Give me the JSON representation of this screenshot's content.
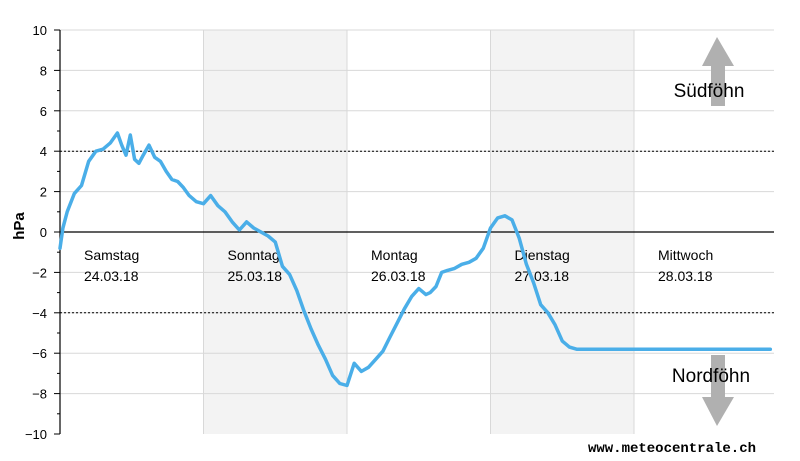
{
  "chart_data": {
    "type": "line",
    "ylabel": "hPa",
    "ylim": [
      -10,
      10
    ],
    "yticks": [
      10,
      8,
      6,
      4,
      2,
      0,
      -2,
      -4,
      -6,
      -8,
      -10
    ],
    "threshold_lines": [
      4,
      -4
    ],
    "xlim": [
      0,
      5
    ],
    "x_unit": "days",
    "days": [
      {
        "name": "Samstag",
        "date": "24.03.18",
        "shaded": false
      },
      {
        "name": "Sonntag",
        "date": "25.03.18",
        "shaded": true
      },
      {
        "name": "Montag",
        "date": "26.03.18",
        "shaded": false
      },
      {
        "name": "Dienstag",
        "date": "27.03.18",
        "shaded": true
      },
      {
        "name": "Mittwoch",
        "date": "28.03.18",
        "shaded": false
      }
    ],
    "annotations": {
      "south": "Südföhn",
      "north": "Nordföhn"
    },
    "line_color": "#4aaee8",
    "grid": true,
    "series": [
      {
        "x": [
          0.0,
          0.02,
          0.05,
          0.1,
          0.15,
          0.2,
          0.25,
          0.3,
          0.35,
          0.4,
          0.43,
          0.46,
          0.49,
          0.52,
          0.55,
          0.58,
          0.62,
          0.66,
          0.7,
          0.74,
          0.78,
          0.82,
          0.86,
          0.9,
          0.95,
          1.0,
          1.05,
          1.1,
          1.15,
          1.2,
          1.25,
          1.3,
          1.35,
          1.4,
          1.45,
          1.5,
          1.55,
          1.6,
          1.65,
          1.7,
          1.75,
          1.8,
          1.85,
          1.9,
          1.95,
          2.0,
          2.05,
          2.1,
          2.15,
          2.2,
          2.25,
          2.3,
          2.35,
          2.4,
          2.45,
          2.5,
          2.55,
          2.58,
          2.62,
          2.66,
          2.7,
          2.75,
          2.8,
          2.85,
          2.9,
          2.95,
          3.0,
          3.05,
          3.1,
          3.15,
          3.2,
          3.25,
          3.3,
          3.35,
          3.4,
          3.45,
          3.5,
          3.55,
          3.6,
          3.65,
          3.7,
          3.75,
          3.8,
          3.85,
          3.9,
          3.95,
          4.0,
          4.05,
          4.1,
          4.15,
          4.2,
          4.25,
          4.3,
          4.35,
          4.4,
          4.45,
          4.5,
          4.55,
          4.6,
          4.65,
          4.7,
          4.75,
          4.8,
          4.85,
          4.9,
          4.95
        ],
        "y": [
          -0.8,
          0.2,
          1.0,
          1.9,
          2.3,
          3.5,
          4.0,
          4.1,
          4.4,
          4.9,
          4.3,
          3.8,
          4.8,
          3.6,
          3.4,
          3.8,
          4.3,
          3.7,
          3.5,
          3.0,
          2.6,
          2.5,
          2.2,
          1.8,
          1.5,
          1.4,
          1.8,
          1.3,
          1.0,
          0.5,
          0.1,
          0.5,
          0.2,
          0.0,
          -0.2,
          -0.5,
          -1.7,
          -2.1,
          -2.9,
          -3.9,
          -4.8,
          -5.6,
          -6.3,
          -7.1,
          -7.5,
          -7.6,
          -6.5,
          -6.9,
          -6.7,
          -6.3,
          -5.9,
          -5.2,
          -4.5,
          -3.8,
          -3.2,
          -2.8,
          -3.1,
          -3.0,
          -2.7,
          -2.0,
          -1.9,
          -1.8,
          -1.6,
          -1.5,
          -1.3,
          -0.8,
          0.2,
          0.7,
          0.8,
          0.6,
          -0.3,
          -1.6,
          -2.5,
          -3.6,
          -4.0,
          -4.6,
          -5.4,
          -5.7,
          -5.8,
          -5.8,
          -5.8,
          -5.8,
          -5.8,
          -5.8,
          -5.8,
          -5.8,
          -5.8,
          -5.8,
          -5.8,
          -5.8,
          -5.8,
          -5.8,
          -5.8,
          -5.8,
          -5.8,
          -5.8,
          -5.8,
          -5.8,
          -5.8,
          -5.8,
          -5.8,
          -5.8,
          -5.8,
          -5.8,
          -5.8,
          -5.8
        ]
      }
    ]
  },
  "watermark": "www.meteocentrale.ch"
}
